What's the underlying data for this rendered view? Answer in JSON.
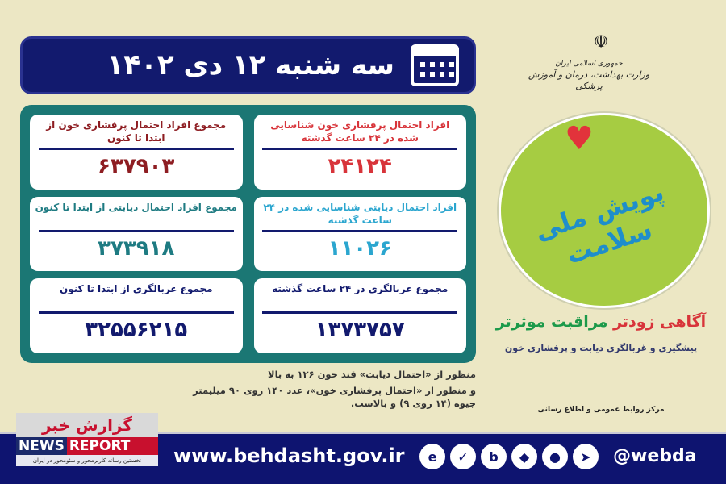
{
  "header": {
    "date": "سه شنبه ۱۲ دی ۱۴۰۲"
  },
  "cards": [
    {
      "title": "افراد احتمال پرفشاری خون شناسایی شده در ۲۴ ساعت گذشته",
      "value": "۲۴۱۲۴"
    },
    {
      "title": "مجموع افراد احتمال پرفشاری خون از ابتدا تا کنون",
      "value": "۶۳۷۹۰۳"
    },
    {
      "title": "افراد احتمال دیابتی شناسایی شده در ۲۴ ساعت گذشته",
      "value": "۱۱۰۲۶"
    },
    {
      "title": "مجموع افراد احتمال دیابتی از ابتدا تا کنون",
      "value": "۳۷۳۹۱۸"
    },
    {
      "title": "مجموع غربالگری در ۲۴ ساعت گذشته",
      "value": "۱۳۷۳۷۵۷"
    },
    {
      "title": "مجموع غربالگری از ابتدا تا کنون",
      "value": "۳۲۵۵۶۲۱۵"
    }
  ],
  "gov": {
    "line1": "جمهوری اسلامی ایران",
    "line2": "وزارت بهداشت، درمان و آموزش پزشکی"
  },
  "logo": {
    "text": "پویش ملی سلامت"
  },
  "slogan": {
    "part1": "آگاهی زودتر",
    "part2": "مراقبت موثرتر",
    "sub": "پیشگیری و غربالگری دیابت و پرفشاری خون"
  },
  "notes": [
    "منظور از «احتمال دیابت» قند خون ۱۲۶ به بالا",
    "و منظور از «احتمال پرفشاری خون»، عدد ۱۴۰ روی ۹۰ میلیمتر جیوه (۱۴ روی ۹) و بالاست."
  ],
  "pr": "مرکز روابط عمومی و اطلاع رسانی",
  "footer": {
    "url": "www.behdasht.gov.ir",
    "handle": "@webda",
    "icons": [
      "eitaa-icon",
      "soroush-icon",
      "bale-icon",
      "rubika-icon",
      "igap-icon",
      "telegram-icon"
    ]
  },
  "watermark": {
    "fa": "گزارش خبر",
    "en1": "NEWS",
    "en2": "REPORT",
    "tagline": "نخستین رسانه کاربرمحور و سئومحور در ایران"
  },
  "colors": {
    "navy": "#121a6e",
    "teal": "#1b7774",
    "red": "#d8343a",
    "blue": "#2ba6cf",
    "bg": "#ece7c4"
  }
}
